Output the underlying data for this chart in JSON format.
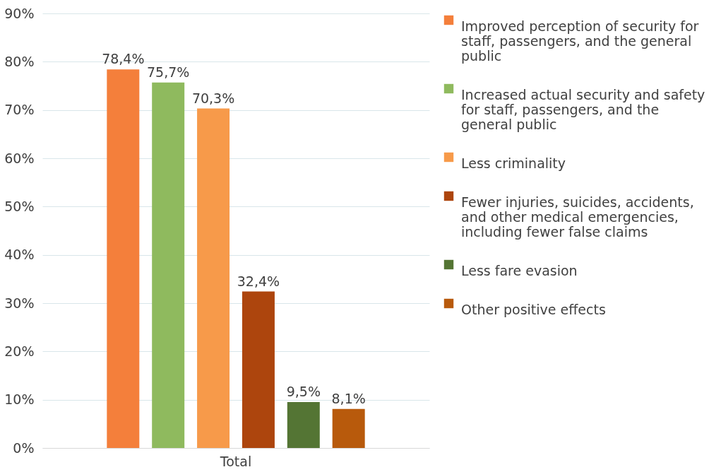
{
  "chart_data": {
    "type": "bar",
    "categories": [
      "Total"
    ],
    "series": [
      {
        "name": "Improved perception of security for staff, passengers, and the general public",
        "color": "#f47f3b",
        "values": [
          78.4
        ],
        "value_labels": [
          "78,4%"
        ]
      },
      {
        "name": "Increased actual security and safety for staff, passengers, and the general public",
        "color": "#8fba5e",
        "values": [
          75.7
        ],
        "value_labels": [
          "75,7%"
        ]
      },
      {
        "name": "Less criminality",
        "color": "#f79a4a",
        "values": [
          70.3
        ],
        "value_labels": [
          "70,3%"
        ]
      },
      {
        "name": "Fewer injuries, suicides, accidents, and other medical emergencies, including fewer false claims",
        "color": "#ad450d",
        "values": [
          32.4
        ],
        "value_labels": [
          "32,4%"
        ]
      },
      {
        "name": "Less fare evasion",
        "color": "#547534",
        "values": [
          9.5
        ],
        "value_labels": [
          "9,5%"
        ]
      },
      {
        "name": "Other positive effects",
        "color": "#b85a0c",
        "values": [
          8.1
        ],
        "value_labels": [
          "8,1%"
        ]
      }
    ],
    "ylim": [
      0,
      90
    ],
    "yticks": [
      {
        "value": 0,
        "label": "0%"
      },
      {
        "value": 10,
        "label": "10%"
      },
      {
        "value": 20,
        "label": "20%"
      },
      {
        "value": 30,
        "label": "30%"
      },
      {
        "value": 40,
        "label": "40%"
      },
      {
        "value": 50,
        "label": "50%"
      },
      {
        "value": 60,
        "label": "60%"
      },
      {
        "value": 70,
        "label": "70%"
      },
      {
        "value": 80,
        "label": "80%"
      },
      {
        "value": 90,
        "label": "90%"
      }
    ],
    "grid": "y",
    "legend": "right"
  }
}
